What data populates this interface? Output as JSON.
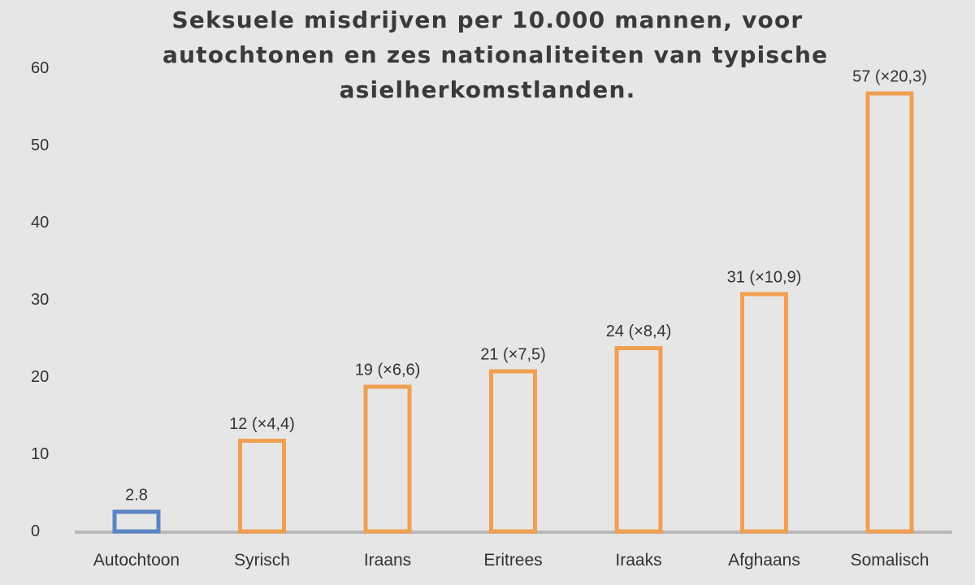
{
  "chart_data": {
    "type": "bar",
    "title_lines": [
      "Seksuele misdrijven per 10.000 mannen, voor",
      "autochtonen en zes nationaliteiten van typische",
      "asielherkomstlanden."
    ],
    "categories": [
      "Autochtoon",
      "Syrisch",
      "Iraans",
      "Eritrees",
      "Iraaks",
      "Afghaans",
      "Somalisch"
    ],
    "values": [
      2.8,
      12,
      19,
      21,
      24,
      31,
      57
    ],
    "data_labels": [
      "2.8",
      "12 (×4,4)",
      "19 (×6,6)",
      "21 (×7,5)",
      "24 (×8,4)",
      "31 (×10,9)",
      "57 (×20,3)"
    ],
    "bar_colors": [
      "#5b84c4",
      "#f0a050",
      "#f0a050",
      "#f0a050",
      "#f0a050",
      "#f0a050",
      "#f0a050"
    ],
    "bar_style": "outline",
    "ylim": [
      0,
      60
    ],
    "yticks": [
      0,
      10,
      20,
      30,
      40,
      50,
      60
    ],
    "xlabel": "",
    "ylabel": "",
    "grid": false,
    "legend": "none",
    "axis_color": "#b8b8b8",
    "background": "#e6e6e6"
  }
}
